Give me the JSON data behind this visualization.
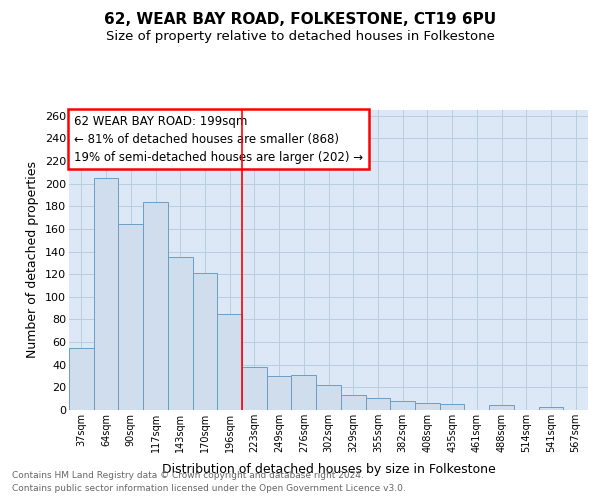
{
  "title1": "62, WEAR BAY ROAD, FOLKESTONE, CT19 6PU",
  "title2": "Size of property relative to detached houses in Folkestone",
  "xlabel": "Distribution of detached houses by size in Folkestone",
  "ylabel": "Number of detached properties",
  "categories": [
    "37sqm",
    "64sqm",
    "90sqm",
    "117sqm",
    "143sqm",
    "170sqm",
    "196sqm",
    "223sqm",
    "249sqm",
    "276sqm",
    "302sqm",
    "329sqm",
    "355sqm",
    "382sqm",
    "408sqm",
    "435sqm",
    "461sqm",
    "488sqm",
    "514sqm",
    "541sqm",
    "567sqm"
  ],
  "values": [
    55,
    205,
    164,
    184,
    135,
    121,
    85,
    38,
    30,
    31,
    22,
    13,
    11,
    8,
    6,
    5,
    0,
    4,
    0,
    3,
    0
  ],
  "bar_color": "#cfdded",
  "bar_edge_color": "#6a9ec5",
  "annotation_text1": "62 WEAR BAY ROAD: 199sqm",
  "annotation_text2": "← 81% of detached houses are smaller (868)",
  "annotation_text3": "19% of semi-detached houses are larger (202) →",
  "annotation_box_color": "white",
  "annotation_box_edge": "red",
  "vline_color": "red",
  "vline_x_index": 6,
  "footer1": "Contains HM Land Registry data © Crown copyright and database right 2024.",
  "footer2": "Contains public sector information licensed under the Open Government Licence v3.0.",
  "grid_color": "#b8cfe0",
  "bg_color": "#dce8f5",
  "ylim": [
    0,
    265
  ],
  "yticks": [
    0,
    20,
    40,
    60,
    80,
    100,
    120,
    140,
    160,
    180,
    200,
    220,
    240,
    260
  ]
}
